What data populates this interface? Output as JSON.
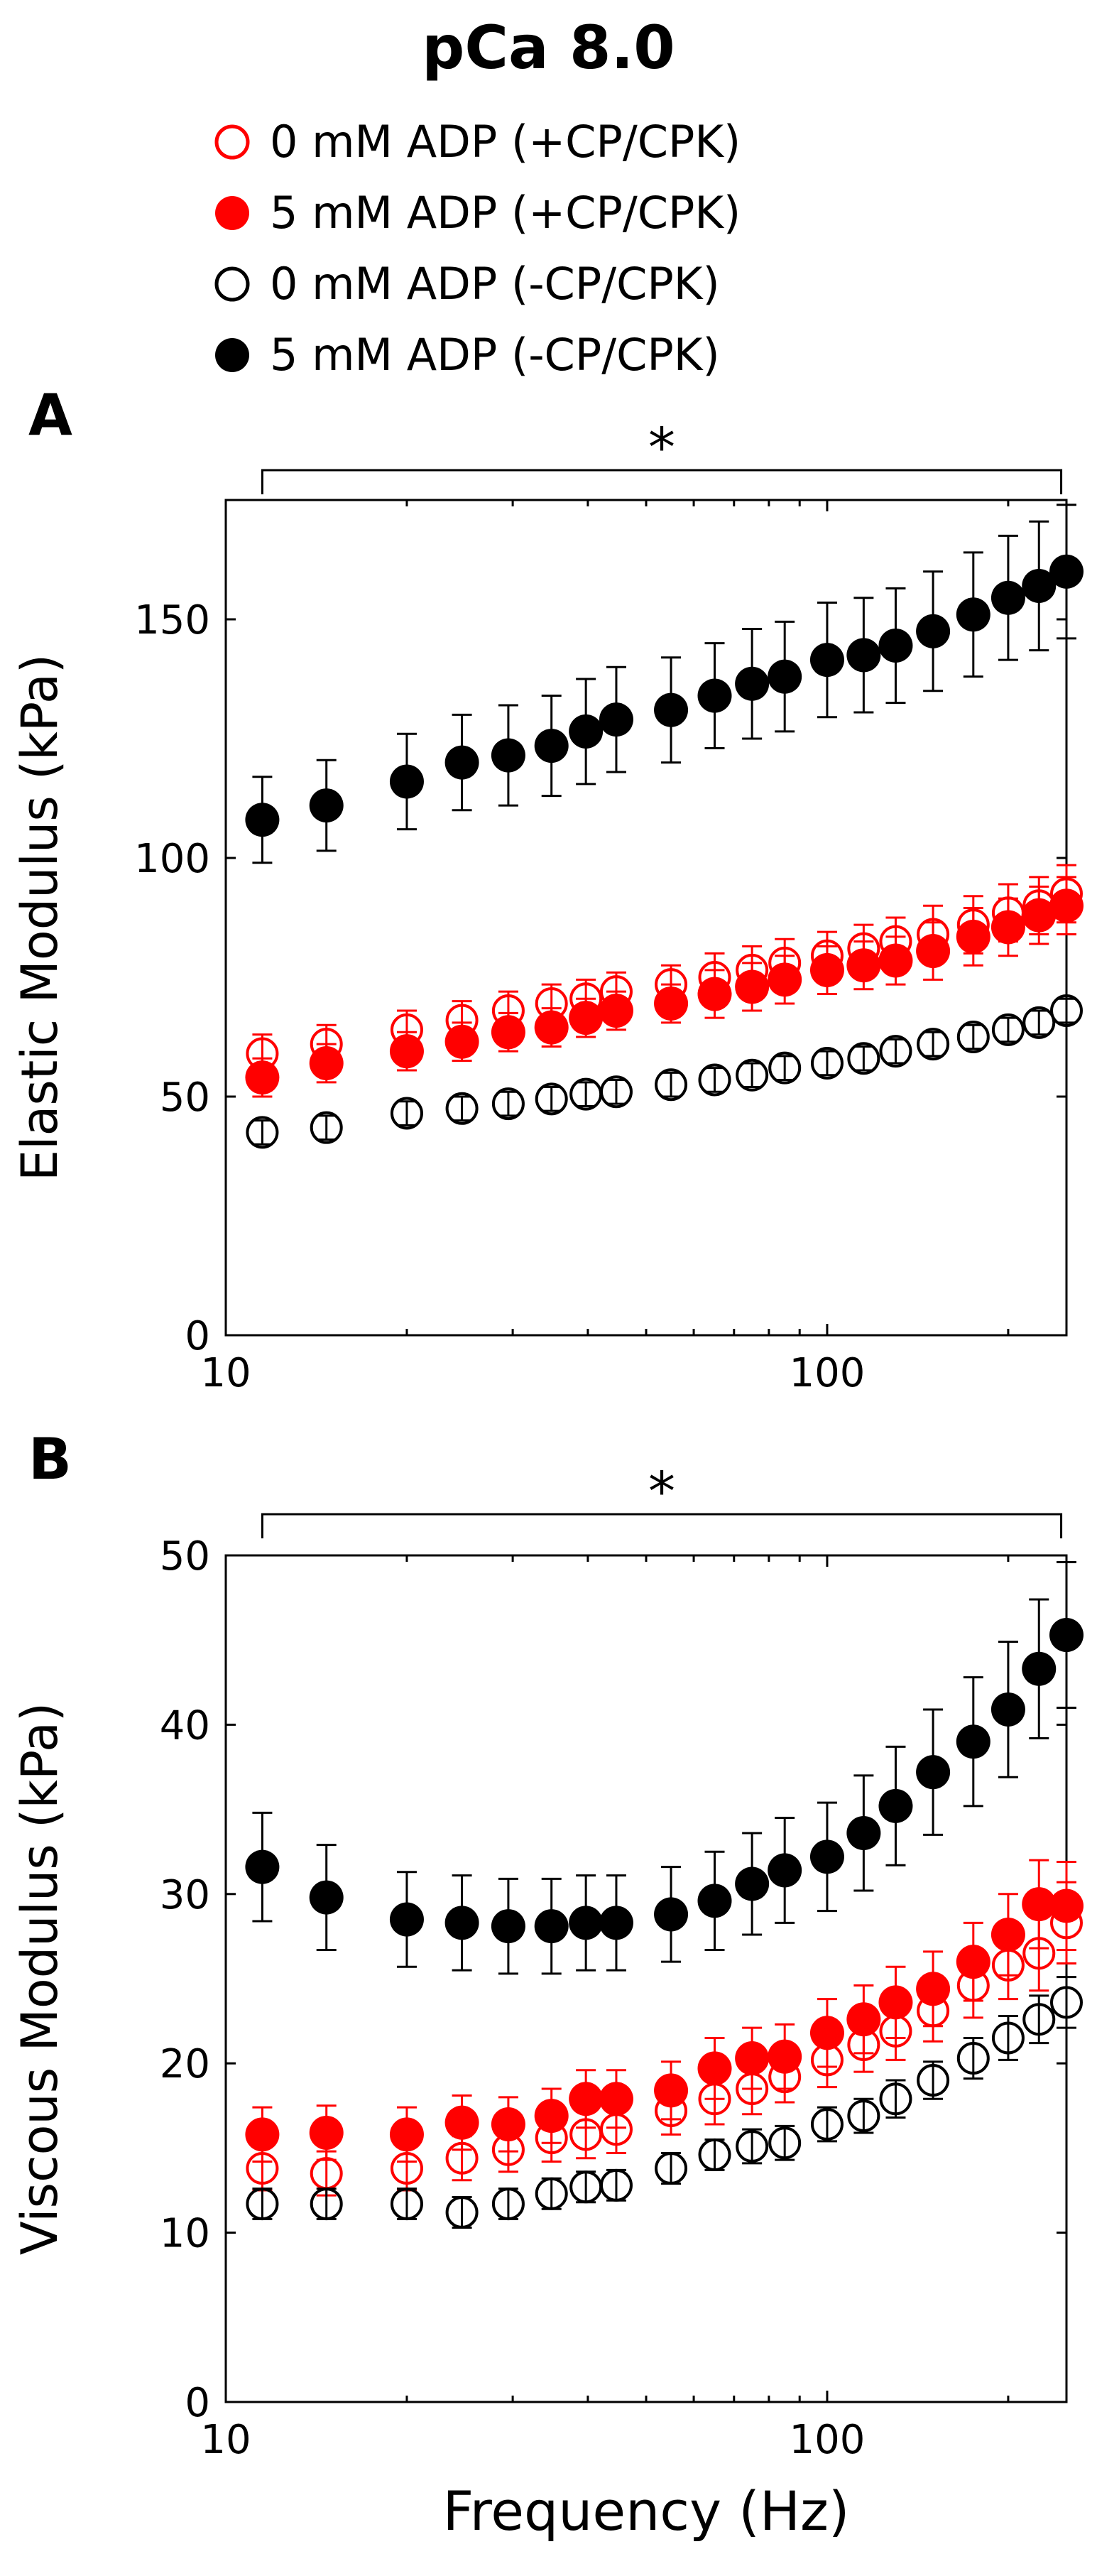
{
  "figure": {
    "title": "pCa 8.0",
    "legend": [
      {
        "label": "0 mM ADP (+CP/CPK)",
        "color": "#ff0000",
        "filled": false
      },
      {
        "label": "5 mM ADP (+CP/CPK)",
        "color": "#ff0000",
        "filled": true
      },
      {
        "label": "0 mM ADP (-CP/CPK)",
        "color": "#000000",
        "filled": false
      },
      {
        "label": "5 mM ADP (-CP/CPK)",
        "color": "#000000",
        "filled": true
      }
    ]
  },
  "chart_data": [
    {
      "type": "scatter",
      "panel": "A",
      "title": "",
      "ylabel": "Elastic Modulus (kPa)",
      "xlabel": "",
      "xscale": "log",
      "xlim": [
        10,
        250
      ],
      "ylim": [
        0,
        175
      ],
      "xticks": [
        10,
        100
      ],
      "yticks": [
        0,
        50,
        100,
        150
      ],
      "significance": {
        "from": 11.5,
        "to": 245,
        "label": "*"
      },
      "x": [
        11.5,
        14.7,
        20,
        24.7,
        29.5,
        34.8,
        39.7,
        44.6,
        55,
        65,
        75,
        85,
        100,
        115,
        130,
        150,
        175,
        200,
        225,
        250
      ],
      "series": [
        {
          "name": "0 mM ADP (+CP/CPK)",
          "color": "#ff0000",
          "filled": false,
          "values": [
            59,
            61,
            64,
            66,
            68,
            69.5,
            70.5,
            72,
            73.5,
            75,
            76.5,
            78,
            79.5,
            81,
            82.5,
            84,
            86,
            88.5,
            90,
            92.5
          ],
          "errors": [
            4,
            4,
            4,
            4,
            4,
            4,
            4,
            4,
            4,
            5,
            5,
            5,
            5,
            5,
            5,
            6,
            6,
            6,
            6,
            6
          ]
        },
        {
          "name": "5 mM ADP (+CP/CPK)",
          "color": "#ff0000",
          "filled": true,
          "values": [
            54,
            57,
            59.5,
            61.5,
            63.5,
            64.5,
            66.5,
            68,
            69.5,
            71.5,
            73,
            74.5,
            76.5,
            77.5,
            78.5,
            80.5,
            83.5,
            85.5,
            88,
            90
          ],
          "errors": [
            4,
            4,
            4,
            4,
            4,
            4,
            4,
            4,
            4,
            5,
            5,
            5,
            5,
            5,
            5,
            6,
            6,
            6,
            6,
            6
          ]
        },
        {
          "name": "0 mM ADP (-CP/CPK)",
          "color": "#000000",
          "filled": false,
          "values": [
            42.5,
            43.5,
            46.5,
            47.5,
            48.5,
            49.5,
            50.5,
            51,
            52.5,
            53.5,
            54.5,
            56,
            57,
            58,
            59.5,
            61,
            62.5,
            64,
            65.5,
            68
          ],
          "errors": [
            2.5,
            2.5,
            2.5,
            2.5,
            2.5,
            2.5,
            2.5,
            2.5,
            2.5,
            2.5,
            2.5,
            2.5,
            2.5,
            2.5,
            2.5,
            2.5,
            2.5,
            2.5,
            2.5,
            2.5
          ]
        },
        {
          "name": "5 mM ADP (-CP/CPK)",
          "color": "#000000",
          "filled": true,
          "values": [
            108,
            111,
            116,
            120,
            121.5,
            123.5,
            126.5,
            129,
            131,
            134,
            136.5,
            138,
            141.5,
            142.5,
            144.5,
            147.5,
            151,
            154.5,
            157,
            160
          ],
          "errors": [
            9,
            9.5,
            10,
            10,
            10.5,
            10.5,
            11,
            11,
            11,
            11,
            11.5,
            11.5,
            12,
            12,
            12,
            12.5,
            13,
            13,
            13.5,
            14
          ]
        }
      ]
    },
    {
      "type": "scatter",
      "panel": "B",
      "title": "",
      "ylabel": "Viscous Modulus (kPa)",
      "xlabel": "Frequency (Hz)",
      "xscale": "log",
      "xlim": [
        10,
        250
      ],
      "ylim": [
        0,
        50
      ],
      "xticks": [
        10,
        100
      ],
      "yticks": [
        0,
        10,
        20,
        30,
        40,
        50
      ],
      "significance": {
        "from": 11.5,
        "to": 245,
        "label": "*"
      },
      "x": [
        11.5,
        14.7,
        20,
        24.7,
        29.5,
        34.8,
        39.7,
        44.6,
        55,
        65,
        75,
        85,
        100,
        115,
        130,
        150,
        175,
        200,
        225,
        250
      ],
      "series": [
        {
          "name": "0 mM ADP (+CP/CPK)",
          "color": "#ff0000",
          "filled": false,
          "values": [
            13.8,
            13.5,
            13.8,
            14.4,
            14.9,
            15.6,
            15.8,
            16.1,
            17.2,
            17.9,
            18.5,
            19.2,
            20.2,
            21.1,
            21.9,
            23.1,
            24.6,
            25.8,
            26.5,
            28.3
          ],
          "errors": [
            1.3,
            1.3,
            1.3,
            1.3,
            1.3,
            1.4,
            1.4,
            1.4,
            1.4,
            1.5,
            1.5,
            1.5,
            1.6,
            1.6,
            1.7,
            1.8,
            1.9,
            2.0,
            2.2,
            2.4
          ]
        },
        {
          "name": "5 mM ADP (+CP/CPK)",
          "color": "#ff0000",
          "filled": true,
          "values": [
            15.8,
            15.9,
            15.8,
            16.5,
            16.4,
            16.9,
            17.9,
            17.9,
            18.4,
            19.7,
            20.3,
            20.4,
            21.8,
            22.6,
            23.6,
            24.4,
            26.0,
            27.6,
            29.4,
            29.3
          ],
          "errors": [
            1.6,
            1.6,
            1.6,
            1.6,
            1.6,
            1.6,
            1.7,
            1.7,
            1.7,
            1.8,
            1.8,
            1.9,
            2.0,
            2.0,
            2.1,
            2.2,
            2.3,
            2.4,
            2.6,
            2.6
          ]
        },
        {
          "name": "0 mM ADP (-CP/CPK)",
          "color": "#000000",
          "filled": false,
          "values": [
            11.7,
            11.7,
            11.7,
            11.2,
            11.7,
            12.3,
            12.7,
            12.8,
            13.8,
            14.6,
            15.1,
            15.3,
            16.4,
            16.9,
            17.9,
            19.0,
            20.3,
            21.5,
            22.6,
            23.6
          ],
          "errors": [
            0.9,
            0.9,
            0.9,
            0.9,
            0.9,
            0.9,
            0.9,
            0.9,
            0.9,
            0.9,
            1.0,
            1.0,
            1.0,
            1.0,
            1.1,
            1.1,
            1.2,
            1.3,
            1.4,
            1.5
          ]
        },
        {
          "name": "5 mM ADP (-CP/CPK)",
          "color": "#000000",
          "filled": true,
          "values": [
            31.6,
            29.8,
            28.5,
            28.3,
            28.1,
            28.1,
            28.3,
            28.3,
            28.8,
            29.6,
            30.6,
            31.4,
            32.2,
            33.6,
            35.2,
            37.2,
            39.0,
            40.9,
            43.3,
            45.3
          ],
          "errors": [
            3.2,
            3.1,
            2.8,
            2.8,
            2.8,
            2.8,
            2.8,
            2.8,
            2.8,
            2.9,
            3.0,
            3.1,
            3.2,
            3.4,
            3.5,
            3.7,
            3.8,
            4.0,
            4.1,
            4.3
          ]
        }
      ]
    }
  ]
}
